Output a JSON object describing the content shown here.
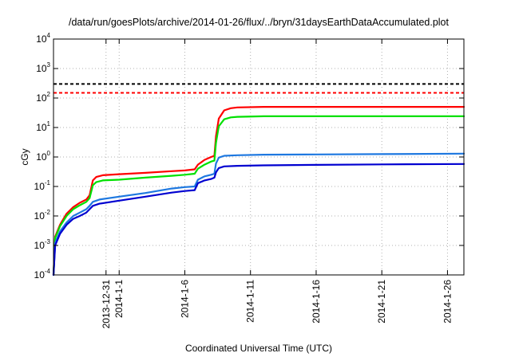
{
  "chart_data": {
    "type": "line",
    "title": "/data/run/goesPlots/archive/2014-01-26/flux/../bryn/31daysEarthDataAccumulated.plot",
    "xlabel": "Coordinated Universal Time (UTC)",
    "ylabel": "cGy",
    "yscale": "log",
    "ylim": [
      0.0001,
      10000
    ],
    "xlim": [
      "2013-12-27T00:00",
      "2014-01-27T06:00"
    ],
    "y_ticks": [
      {
        "base": "10",
        "exp": "-4",
        "value": 0.0001
      },
      {
        "base": "10",
        "exp": "-3",
        "value": 0.001
      },
      {
        "base": "10",
        "exp": "-2",
        "value": 0.01
      },
      {
        "base": "10",
        "exp": "-1",
        "value": 0.1
      },
      {
        "base": "10",
        "exp": "0",
        "value": 1
      },
      {
        "base": "10",
        "exp": "1",
        "value": 10
      },
      {
        "base": "10",
        "exp": "2",
        "value": 100
      },
      {
        "base": "10",
        "exp": "3",
        "value": 1000
      },
      {
        "base": "10",
        "exp": "4",
        "value": 10000
      }
    ],
    "x_ticks": [
      {
        "label": "2013-12-31",
        "date": "2013-12-31"
      },
      {
        "label": "2014-1-1",
        "date": "2014-01-01"
      },
      {
        "label": "2014-1-6",
        "date": "2014-01-06"
      },
      {
        "label": "2014-1-11",
        "date": "2014-01-11"
      },
      {
        "label": "2014-1-16",
        "date": "2014-01-16"
      },
      {
        "label": "2014-1-21",
        "date": "2014-01-21"
      },
      {
        "label": "2014-1-26",
        "date": "2014-01-26"
      }
    ],
    "grid": true,
    "threshold_lines": [
      {
        "value": 300,
        "color": "#000000",
        "style": "dashed"
      },
      {
        "value": 150,
        "color": "#ff0000",
        "style": "dashed"
      }
    ],
    "series": [
      {
        "color": "#ff0000",
        "points": [
          [
            "2013-12-27T00:00",
            0.0001
          ],
          [
            "2013-12-27T03:00",
            0.002
          ],
          [
            "2013-12-27T12:00",
            0.005
          ],
          [
            "2013-12-28T00:00",
            0.012
          ],
          [
            "2013-12-28T12:00",
            0.02
          ],
          [
            "2013-12-29T00:00",
            0.028
          ],
          [
            "2013-12-29T12:00",
            0.036
          ],
          [
            "2013-12-29T18:00",
            0.05
          ],
          [
            "2013-12-30T00:00",
            0.16
          ],
          [
            "2013-12-30T06:00",
            0.21
          ],
          [
            "2013-12-30T18:00",
            0.24
          ],
          [
            "2014-01-01T00:00",
            0.26
          ],
          [
            "2014-01-03T00:00",
            0.29
          ],
          [
            "2014-01-05T00:00",
            0.33
          ],
          [
            "2014-01-06T00:00",
            0.35
          ],
          [
            "2014-01-06T18:00",
            0.38
          ],
          [
            "2014-01-07T00:00",
            0.55
          ],
          [
            "2014-01-07T12:00",
            0.8
          ],
          [
            "2014-01-08T00:00",
            1.0
          ],
          [
            "2014-01-08T06:00",
            1.1
          ],
          [
            "2014-01-08T09:00",
            5.0
          ],
          [
            "2014-01-08T14:00",
            20
          ],
          [
            "2014-01-09T00:00",
            38
          ],
          [
            "2014-01-09T12:00",
            45
          ],
          [
            "2014-01-10T00:00",
            48
          ],
          [
            "2014-01-12T00:00",
            50
          ],
          [
            "2014-01-16T00:00",
            50
          ],
          [
            "2014-01-21T00:00",
            50
          ],
          [
            "2014-01-27T06:00",
            50
          ]
        ]
      },
      {
        "color": "#00e000",
        "points": [
          [
            "2013-12-27T00:00",
            0.0001
          ],
          [
            "2013-12-27T03:00",
            0.0018
          ],
          [
            "2013-12-27T12:00",
            0.0045
          ],
          [
            "2013-12-28T00:00",
            0.01
          ],
          [
            "2013-12-28T12:00",
            0.017
          ],
          [
            "2013-12-29T00:00",
            0.023
          ],
          [
            "2013-12-29T12:00",
            0.03
          ],
          [
            "2013-12-29T18:00",
            0.04
          ],
          [
            "2013-12-30T00:00",
            0.11
          ],
          [
            "2013-12-30T06:00",
            0.14
          ],
          [
            "2013-12-30T18:00",
            0.16
          ],
          [
            "2014-01-01T00:00",
            0.17
          ],
          [
            "2014-01-03T00:00",
            0.2
          ],
          [
            "2014-01-05T00:00",
            0.23
          ],
          [
            "2014-01-06T00:00",
            0.25
          ],
          [
            "2014-01-06T18:00",
            0.27
          ],
          [
            "2014-01-07T00:00",
            0.4
          ],
          [
            "2014-01-07T12:00",
            0.55
          ],
          [
            "2014-01-08T00:00",
            0.7
          ],
          [
            "2014-01-08T06:00",
            0.75
          ],
          [
            "2014-01-08T09:00",
            3.0
          ],
          [
            "2014-01-08T14:00",
            11
          ],
          [
            "2014-01-09T00:00",
            19
          ],
          [
            "2014-01-09T12:00",
            22
          ],
          [
            "2014-01-10T00:00",
            23
          ],
          [
            "2014-01-12T00:00",
            24
          ],
          [
            "2014-01-16T00:00",
            24
          ],
          [
            "2014-01-21T00:00",
            24
          ],
          [
            "2014-01-27T06:00",
            24
          ]
        ]
      },
      {
        "color": "#1e78e0",
        "points": [
          [
            "2013-12-27T00:00",
            0.0001
          ],
          [
            "2013-12-27T03:00",
            0.0012
          ],
          [
            "2013-12-27T12:00",
            0.003
          ],
          [
            "2013-12-28T00:00",
            0.006
          ],
          [
            "2013-12-28T12:00",
            0.01
          ],
          [
            "2013-12-29T00:00",
            0.013
          ],
          [
            "2013-12-29T12:00",
            0.017
          ],
          [
            "2013-12-29T18:00",
            0.022
          ],
          [
            "2013-12-30T00:00",
            0.03
          ],
          [
            "2013-12-30T12:00",
            0.036
          ],
          [
            "2014-01-01T00:00",
            0.045
          ],
          [
            "2014-01-03T00:00",
            0.06
          ],
          [
            "2014-01-05T00:00",
            0.085
          ],
          [
            "2014-01-06T00:00",
            0.095
          ],
          [
            "2014-01-06T18:00",
            0.1
          ],
          [
            "2014-01-07T00:00",
            0.17
          ],
          [
            "2014-01-07T12:00",
            0.22
          ],
          [
            "2014-01-08T00:00",
            0.25
          ],
          [
            "2014-01-08T06:00",
            0.27
          ],
          [
            "2014-01-08T09:00",
            0.6
          ],
          [
            "2014-01-08T14:00",
            0.95
          ],
          [
            "2014-01-09T00:00",
            1.1
          ],
          [
            "2014-01-10T00:00",
            1.15
          ],
          [
            "2014-01-12T00:00",
            1.2
          ],
          [
            "2014-01-16T00:00",
            1.22
          ],
          [
            "2014-01-21T00:00",
            1.25
          ],
          [
            "2014-01-27T06:00",
            1.3
          ]
        ]
      },
      {
        "color": "#0000d0",
        "points": [
          [
            "2013-12-27T00:00",
            0.0001
          ],
          [
            "2013-12-27T03:00",
            0.001
          ],
          [
            "2013-12-27T12:00",
            0.0025
          ],
          [
            "2013-12-28T00:00",
            0.005
          ],
          [
            "2013-12-28T12:00",
            0.008
          ],
          [
            "2013-12-29T00:00",
            0.01
          ],
          [
            "2013-12-29T12:00",
            0.013
          ],
          [
            "2013-12-29T18:00",
            0.017
          ],
          [
            "2013-12-30T00:00",
            0.022
          ],
          [
            "2013-12-30T12:00",
            0.026
          ],
          [
            "2014-01-01T00:00",
            0.033
          ],
          [
            "2014-01-03T00:00",
            0.045
          ],
          [
            "2014-01-05T00:00",
            0.062
          ],
          [
            "2014-01-06T00:00",
            0.07
          ],
          [
            "2014-01-06T18:00",
            0.075
          ],
          [
            "2014-01-07T00:00",
            0.13
          ],
          [
            "2014-01-07T12:00",
            0.16
          ],
          [
            "2014-01-08T00:00",
            0.18
          ],
          [
            "2014-01-08T06:00",
            0.2
          ],
          [
            "2014-01-08T09:00",
            0.3
          ],
          [
            "2014-01-08T14:00",
            0.42
          ],
          [
            "2014-01-09T00:00",
            0.48
          ],
          [
            "2014-01-10T00:00",
            0.5
          ],
          [
            "2014-01-12T00:00",
            0.52
          ],
          [
            "2014-01-16T00:00",
            0.54
          ],
          [
            "2014-01-21T00:00",
            0.56
          ],
          [
            "2014-01-27T06:00",
            0.58
          ]
        ]
      }
    ]
  }
}
